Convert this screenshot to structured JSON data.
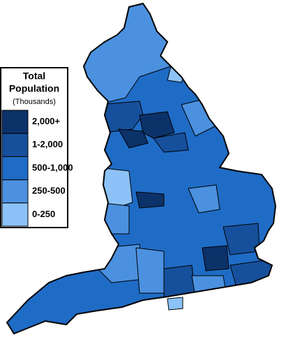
{
  "legend": {
    "title_lines": [
      "Total",
      "Population"
    ],
    "subtitle": "(Thousands)",
    "items": [
      {
        "label": "2,000+",
        "color": "#0c326a"
      },
      {
        "label": "1-2,000",
        "color": "#16509c"
      },
      {
        "label": "500-1,000",
        "color": "#1f6cc6"
      },
      {
        "label": "250-500",
        "color": "#4b91e0"
      },
      {
        "label": "0-250",
        "color": "#8cc2f7"
      }
    ]
  }
}
